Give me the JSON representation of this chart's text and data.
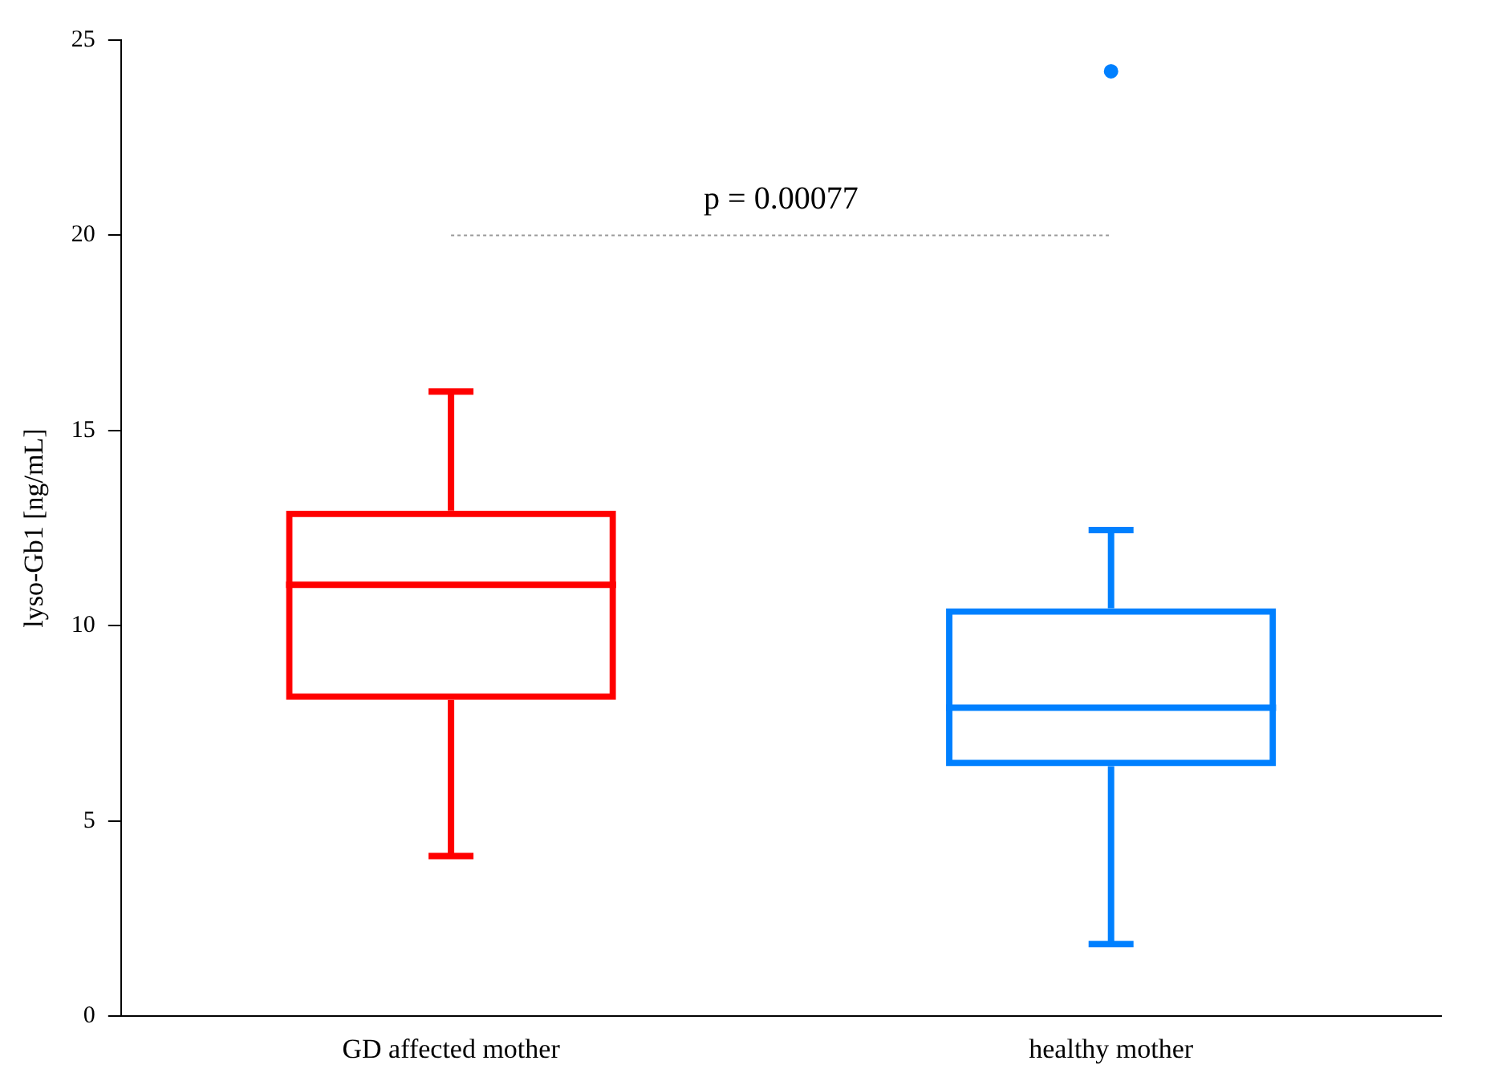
{
  "chart_data": {
    "type": "box",
    "ylabel": "lyso-Gb1 [ng/mL]",
    "categories": [
      "GD affected mother",
      "healthy mother"
    ],
    "colors": [
      "#ff0000",
      "#0080ff"
    ],
    "boxes": [
      {
        "low": 4.1,
        "q1": 8.1,
        "median": 11.05,
        "q3": 12.95,
        "high": 16.0
      },
      {
        "low": 1.85,
        "q1": 6.4,
        "median": 7.9,
        "q3": 10.45,
        "high": 12.45,
        "outliers": [
          24.2
        ]
      }
    ],
    "annotations": [
      "p = 0.00077"
    ],
    "ylim": [
      0,
      25
    ],
    "yticks": [
      0,
      5,
      10,
      15,
      20,
      25
    ]
  }
}
